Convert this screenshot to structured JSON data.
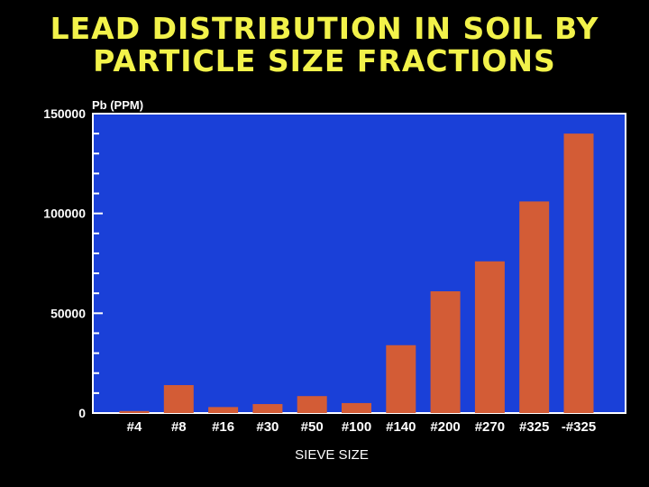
{
  "title_lines": [
    "LEAD DISTRIBUTION IN SOIL BY",
    "PARTICLE SIZE FRACTIONS"
  ],
  "colors": {
    "background": "#000000",
    "plot_background": "#1a40d8",
    "bar": "#d35c36",
    "title": "#f2f24a",
    "text": "#ffffff"
  },
  "chart_data": {
    "type": "bar",
    "title": "LEAD DISTRIBUTION IN SOIL BY PARTICLE SIZE FRACTIONS",
    "ylabel": "Pb (PPM)",
    "xlabel": "SIEVE SIZE",
    "ylim": [
      0,
      150000
    ],
    "yticks": [
      0,
      50000,
      100000,
      150000
    ],
    "ytick_labels": [
      "0",
      "50000",
      "100000",
      "150000"
    ],
    "grid": false,
    "categories": [
      "#4",
      "#8",
      "#16",
      "#30",
      "#50",
      "#100",
      "#140",
      "#200",
      "#270",
      "#325",
      "-#325"
    ],
    "values": [
      1000,
      14000,
      3000,
      4500,
      8500,
      5000,
      34000,
      61000,
      76000,
      106000,
      140000
    ]
  }
}
